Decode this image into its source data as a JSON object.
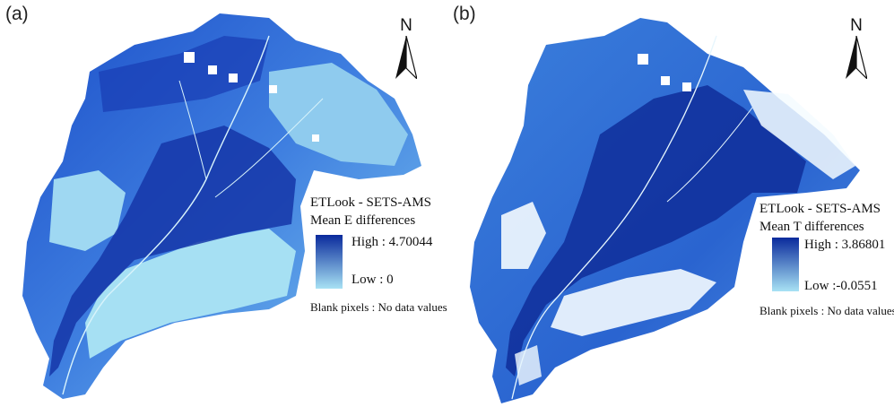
{
  "panels": [
    {
      "label": "(a)",
      "north": "N",
      "legend": {
        "title": "ETLook - SETS-AMS",
        "subtitle": "Mean E differences",
        "high": "High : 4.70044",
        "low": "Low : 0",
        "note": "Blank pixels : No data values"
      },
      "colors": {
        "high": "#0a2a9c",
        "low": "#a8e2f4"
      }
    },
    {
      "label": "(b)",
      "north": "N",
      "legend": {
        "title": "ETLook - SETS-AMS",
        "subtitle": "Mean T differences",
        "high": "High : 3.86801",
        "low": "Low :-0.0551",
        "note": "Blank pixels : No data values"
      },
      "colors": {
        "high": "#0a2a9c",
        "low": "#a8e2f4"
      }
    }
  ]
}
